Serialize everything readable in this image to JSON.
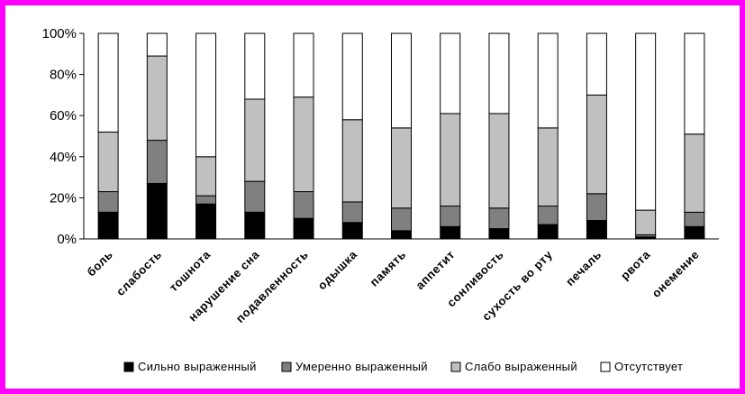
{
  "chart_data": {
    "type": "bar",
    "stacked": "percent",
    "categories": [
      "боль",
      "слабость",
      "тошнота",
      "нарушение сна",
      "подавленность",
      "одышка",
      "память",
      "аппетит",
      "сонливость",
      "сухость во рту",
      "печаль",
      "рвота",
      "онемение"
    ],
    "series": [
      {
        "name": "Сильно выраженный",
        "color": "#000000",
        "values": [
          13,
          27,
          17,
          13,
          10,
          8,
          4,
          6,
          5,
          7,
          9,
          1,
          6
        ]
      },
      {
        "name": "Умеренно выраженный",
        "color": "#808080",
        "values": [
          10,
          21,
          4,
          15,
          13,
          10,
          11,
          10,
          10,
          9,
          13,
          1,
          7
        ]
      },
      {
        "name": "Слабо выраженный",
        "color": "#c0c0c0",
        "values": [
          29,
          41,
          19,
          40,
          46,
          40,
          39,
          45,
          46,
          38,
          48,
          12,
          38
        ]
      },
      {
        "name": "Отсутствует",
        "color": "#ffffff",
        "values": [
          48,
          11,
          60,
          32,
          31,
          42,
          46,
          39,
          39,
          46,
          30,
          86,
          49
        ]
      }
    ],
    "ylim": [
      0,
      100
    ],
    "yticks": [
      "0%",
      "20%",
      "40%",
      "60%",
      "80%",
      "100%"
    ],
    "grid": false,
    "legend_position": "bottom"
  }
}
